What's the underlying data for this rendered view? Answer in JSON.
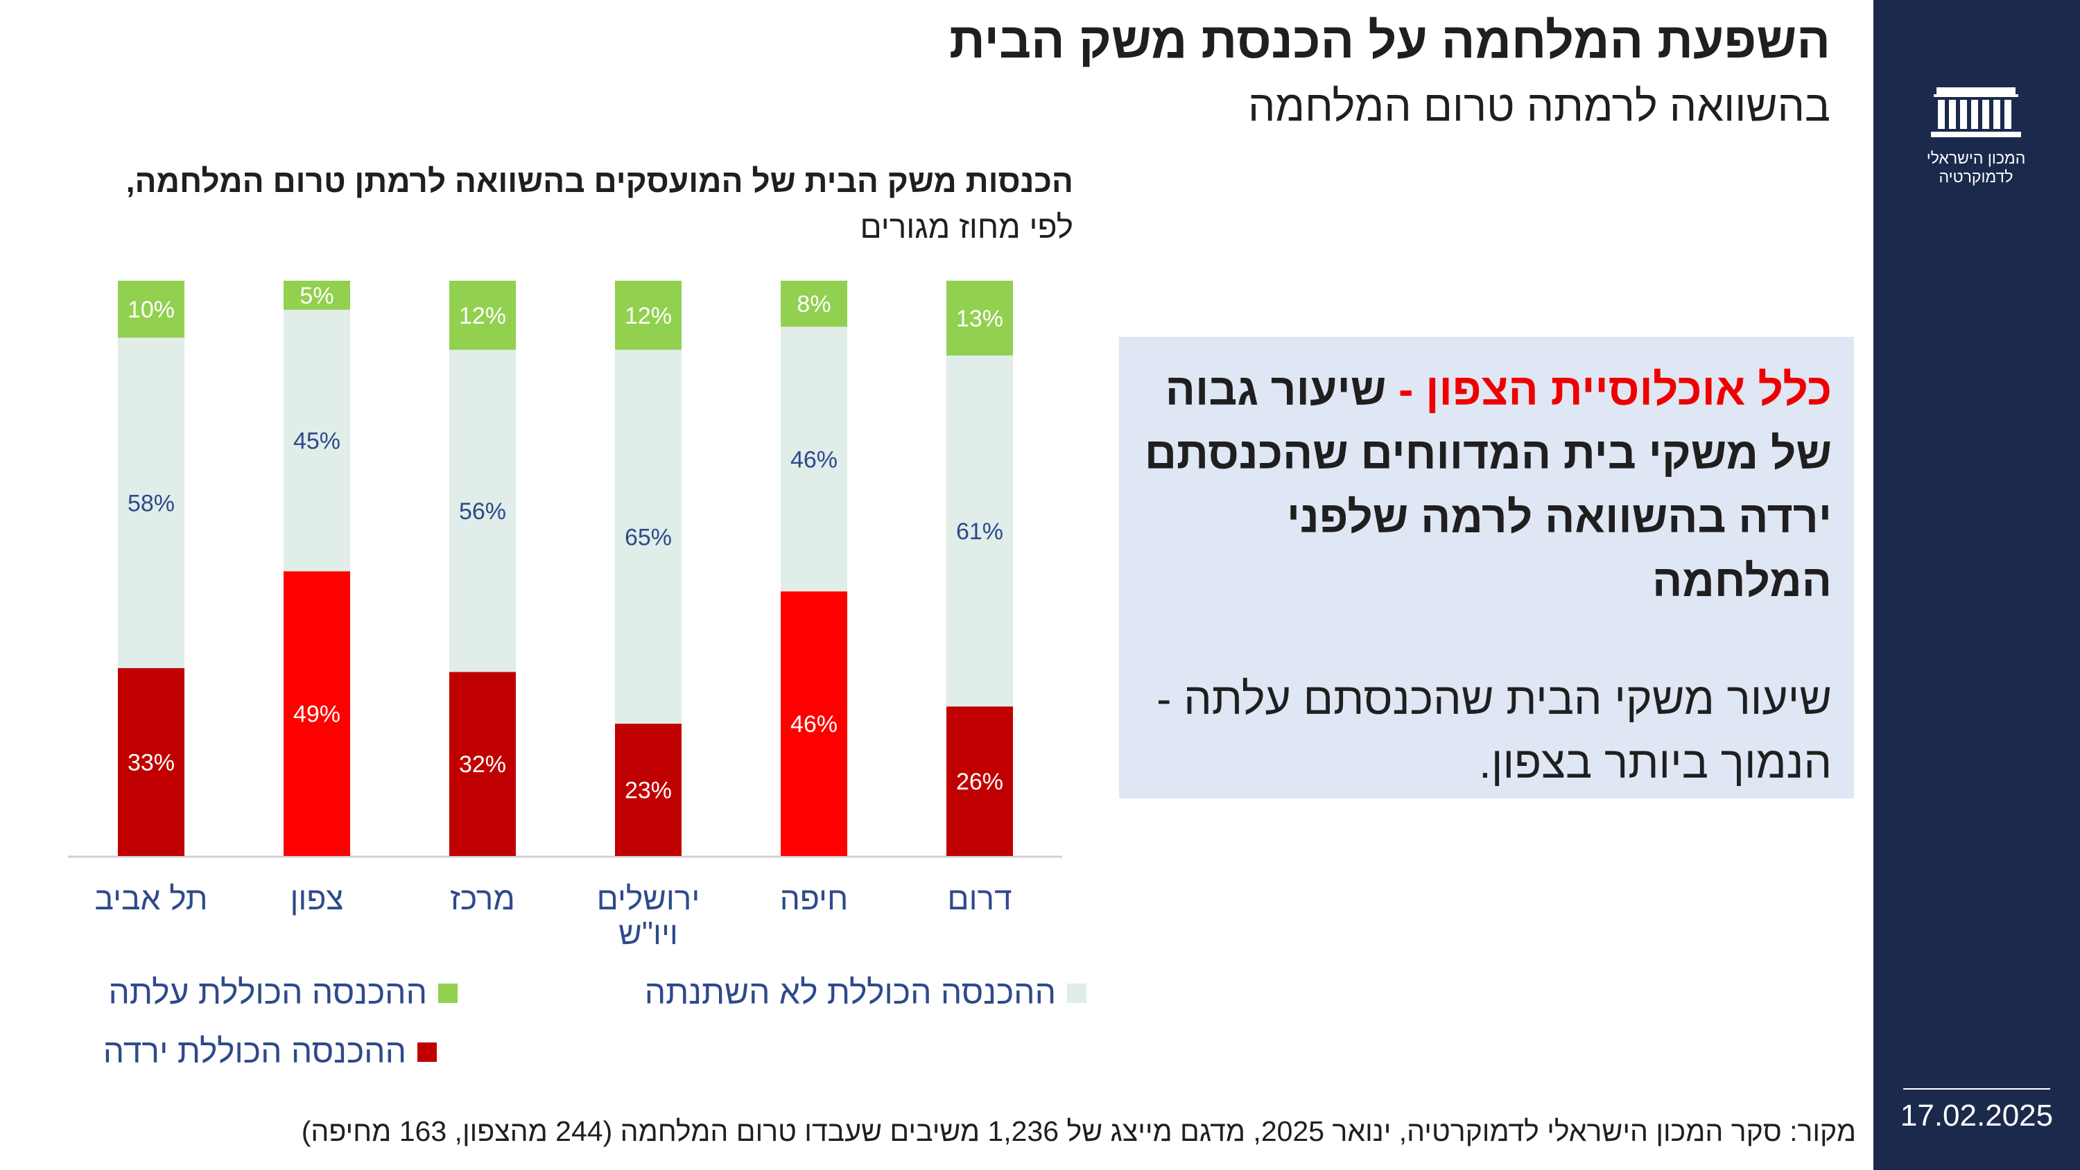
{
  "header": {
    "title": "השפעת המלחמה על הכנסת משק הבית",
    "subtitle": "בהשוואה לרמתה טרום המלחמה"
  },
  "sidebar": {
    "logo_icon": "institute-building-icon",
    "logo_line1": "המכון הישראלי",
    "logo_line2": "לדמוקרטיה",
    "date": "17.02.2025",
    "background": "#1b2a4c"
  },
  "chart_heading": {
    "bold_part": "הכנסות משק הבית של המועסקים בהשוואה לרמתן טרום המלחמה,",
    "regular_part": "לפי מחוז מגורים"
  },
  "chart_data": {
    "type": "bar",
    "stacked": true,
    "percent": true,
    "categories": [
      "תל אביב",
      "צפון",
      "מרכז",
      "ירושלים ויו\"ש",
      "חיפה",
      "דרום"
    ],
    "category_lines": [
      [
        "תל אביב"
      ],
      [
        "צפון"
      ],
      [
        "מרכז"
      ],
      [
        "ירושלים",
        "ויו\"ש"
      ],
      [
        "חיפה"
      ],
      [
        "דרום"
      ]
    ],
    "series": [
      {
        "name": "ההכנסה הכוללת ירדה",
        "values": [
          33,
          49,
          32,
          23,
          46,
          26
        ],
        "labels": [
          "33%",
          "49%",
          "32%",
          "23%",
          "46%",
          "26%"
        ],
        "colors": [
          "#c00000",
          "#ff0000",
          "#c00000",
          "#c00000",
          "#ff0000",
          "#c00000"
        ],
        "label_color": "#ffffff"
      },
      {
        "name": "ההכנסה הכוללת לא השתנתה",
        "values": [
          58,
          45,
          56,
          65,
          46,
          61
        ],
        "labels": [
          "58%",
          "45%",
          "56%",
          "65%",
          "46%",
          "61%"
        ],
        "color": "#e0ede8",
        "label_color": "#2e4a8c"
      },
      {
        "name": "ההכנסה הכוללת עלתה",
        "values": [
          10,
          5,
          12,
          12,
          8,
          13
        ],
        "labels": [
          "10%",
          "5%",
          "12%",
          "12%",
          "8%",
          "13%"
        ],
        "color": "#92d050",
        "label_color": "#ffffff"
      }
    ],
    "ylim": [
      0,
      100
    ],
    "grid": false,
    "legend_position": "bottom"
  },
  "legend": {
    "rose": "ההכנסה הכוללת עלתה",
    "unchanged": "ההכנסה הכוללת לא השתנתה",
    "fell": "ההכנסה הכוללת ירדה"
  },
  "callout": {
    "highlight": "כלל אוכלוסיית הצפון",
    "dash": "-",
    "main_rest": "שיעור גבוה של משקי בית המדווחים שהכנסתם ירדה בהשוואה לרמה שלפני המלחמה",
    "secondary": "שיעור משקי הבית שהכנסתם עלתה - הנמוך ביותר בצפון.",
    "background": "#dfe6f4",
    "highlight_color": "#ee0000"
  },
  "source": "מקור: סקר המכון הישראלי לדמוקרטיה, ינואר 2025, מדגם מייצג של 1,236 משיבים שעבדו טרום המלחמה (244 מהצפון, 163 מחיפה)"
}
